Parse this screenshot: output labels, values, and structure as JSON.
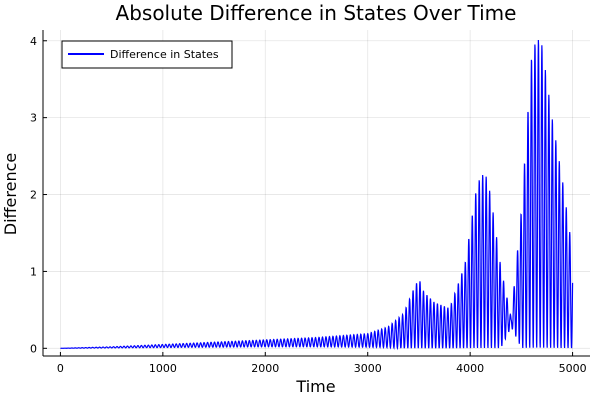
{
  "chart_data": {
    "type": "line",
    "title": "Absolute Difference in States Over Time",
    "xlabel": "Time",
    "ylabel": "Difference",
    "xlim": [
      -170,
      5170
    ],
    "ylim": [
      -0.1,
      4.14
    ],
    "xticks": [
      0,
      1000,
      2000,
      3000,
      4000,
      5000
    ],
    "yticks": [
      0,
      1,
      2,
      3,
      4
    ],
    "grid": true,
    "legend": {
      "position": "top-left",
      "entries": [
        "Difference in States"
      ]
    },
    "series": [
      {
        "name": "Difference in States",
        "color": "#0000ff",
        "envelope": {
          "x": [
            0,
            500,
            1000,
            1500,
            2000,
            2500,
            3000,
            3200,
            3350,
            3450,
            3500,
            3550,
            3650,
            3800,
            3950,
            4050,
            4100,
            4150,
            4200,
            4300,
            4400,
            4500,
            4600,
            4650,
            4700,
            4800,
            4900,
            5000
          ],
          "upper": [
            0.0,
            0.02,
            0.05,
            0.08,
            0.11,
            0.14,
            0.19,
            0.28,
            0.45,
            0.78,
            0.91,
            0.73,
            0.6,
            0.52,
            1.1,
            2.0,
            2.25,
            2.27,
            2.0,
            1.05,
            0.4,
            1.8,
            3.8,
            4.05,
            3.95,
            3.0,
            2.2,
            1.25
          ],
          "lower": [
            0.0,
            0.005,
            0.01,
            0.015,
            0.02,
            0.02,
            0.015,
            0.01,
            0.0,
            0.0,
            0.0,
            0.0,
            0.0,
            0.0,
            0.0,
            0.0,
            0.0,
            0.0,
            0.0,
            0.0,
            0.28,
            0.0,
            0.0,
            0.0,
            0.0,
            0.0,
            0.0,
            0.0
          ]
        }
      }
    ]
  }
}
